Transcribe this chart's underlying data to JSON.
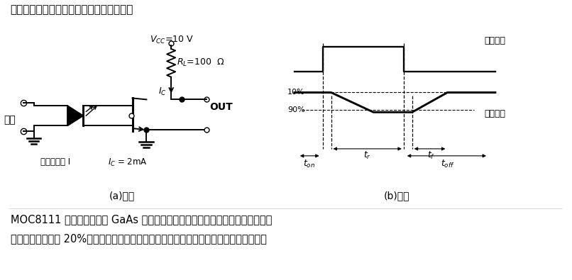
{
  "bg_color": "#ffffff",
  "title_text": "用途：用于两个分离电路之间的信号传输。",
  "bottom_text1": "MOC8111 光耦合器由一个 GaAs 红外发射二极管和硅平面光晶体管检测器组成。",
  "bottom_text2": "特点：电流传输比 20%（最小）；无基极端连接，提高了共模干扰抑制；长期稳定性好。",
  "label_a": "(a)电路",
  "label_b": "(b)波形",
  "input_label": "输入",
  "adjust_label": "输入调节体 I",
  "input_pulse_label": "输入脉冲",
  "output_pulse_label": "输出脉冲"
}
